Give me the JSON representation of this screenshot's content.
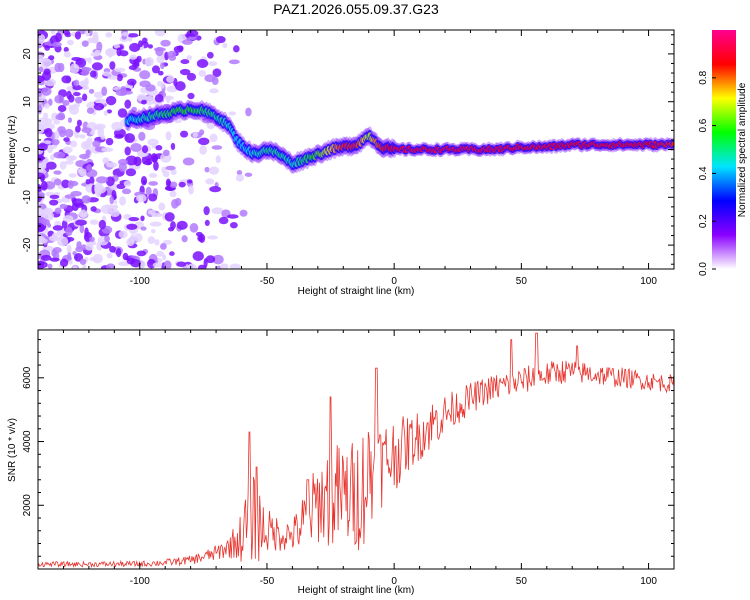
{
  "figure_title": "PAZ1.2026.055.09.37.G23",
  "chart_data": [
    {
      "type": "heatmap",
      "title": "PAZ1.2026.055.09.37.G23",
      "xlabel": "Height of straight line (km)",
      "ylabel": "Frequency (Hz)",
      "xlim": [
        -140,
        110
      ],
      "ylim": [
        -25,
        25
      ],
      "x_ticks": [
        -100,
        -50,
        0,
        50,
        100
      ],
      "y_ticks": [
        -20,
        -10,
        0,
        10,
        20
      ],
      "colorbar": {
        "label": "Normalized spectral amplitude",
        "range": [
          0,
          1
        ],
        "ticks": [
          "0.0",
          "0.2",
          "0.4",
          "0.6",
          "0.8"
        ],
        "colors": [
          "#ffffff",
          "#8a00ff",
          "#0000ff",
          "#00e5ff",
          "#00ff00",
          "#ffff00",
          "#ff0000",
          "#ff0090"
        ]
      },
      "ridge": {
        "x": [
          -105,
          -95,
          -90,
          -85,
          -80,
          -75,
          -70,
          -65,
          -62,
          -58,
          -55,
          -50,
          -45,
          -40,
          -35,
          -30,
          -25,
          -20,
          -15,
          -12,
          -10,
          -8,
          -5,
          0,
          5,
          10,
          20,
          30,
          40,
          50,
          60,
          70,
          80,
          90,
          100,
          110
        ],
        "freq": [
          6,
          7,
          7.5,
          8,
          8.5,
          8,
          7,
          5,
          2,
          0,
          -1,
          0,
          -1,
          -3,
          -2,
          -1,
          0,
          0.5,
          1,
          2,
          3,
          2,
          0.5,
          0,
          0,
          0,
          0,
          0,
          0,
          0.5,
          0.5,
          1,
          1,
          1,
          1,
          1
        ],
        "amplitude": [
          0.3,
          0.4,
          0.45,
          0.5,
          0.5,
          0.45,
          0.4,
          0.35,
          0.3,
          0.3,
          0.35,
          0.4,
          0.4,
          0.35,
          0.45,
          0.55,
          0.7,
          0.85,
          0.85,
          0.7,
          0.6,
          0.75,
          0.85,
          0.9,
          0.92,
          0.92,
          0.93,
          0.93,
          0.92,
          0.9,
          0.9,
          0.88,
          0.9,
          0.9,
          0.88,
          0.85
        ]
      }
    },
    {
      "type": "line",
      "xlabel": "Height of straight line (km)",
      "ylabel": "SNR (10 * v/v)",
      "xlim": [
        -140,
        110
      ],
      "ylim": [
        0,
        7500
      ],
      "x_ticks": [
        -100,
        -50,
        0,
        50,
        100
      ],
      "y_ticks": [
        2000,
        4000,
        6000
      ],
      "series": [
        {
          "name": "SNR",
          "color": "#e8332d",
          "x": [
            -140,
            -120,
            -100,
            -90,
            -80,
            -75,
            -70,
            -65,
            -60,
            -57,
            -55,
            -52,
            -50,
            -45,
            -40,
            -35,
            -30,
            -25,
            -20,
            -15,
            -10,
            -5,
            0,
            5,
            10,
            15,
            20,
            25,
            30,
            35,
            40,
            45,
            50,
            55,
            60,
            65,
            70,
            75,
            80,
            85,
            90,
            95,
            100,
            105,
            110
          ],
          "envelope": [
            150,
            150,
            160,
            200,
            280,
            380,
            500,
            700,
            1000,
            1500,
            1600,
            1300,
            1200,
            1100,
            1050,
            1500,
            2100,
            2300,
            2300,
            2300,
            2900,
            3300,
            3600,
            3900,
            4200,
            4550,
            4850,
            5100,
            5350,
            5550,
            5700,
            5800,
            5900,
            6000,
            6100,
            6200,
            6200,
            6150,
            6100,
            6050,
            6000,
            5950,
            5900,
            5850,
            5800
          ],
          "noise": [
            80,
            80,
            90,
            110,
            140,
            180,
            250,
            350,
            800,
            1500,
            1400,
            1100,
            700,
            550,
            500,
            1000,
            1300,
            1700,
            1700,
            1800,
            2100,
            1400,
            1200,
            900,
            800,
            800,
            650,
            550,
            500,
            450,
            450,
            450,
            450,
            420,
            400,
            400,
            380,
            360,
            350,
            340,
            320,
            310,
            300,
            290,
            280
          ],
          "spikes": [
            {
              "x": -57,
              "y": 4300
            },
            {
              "x": -54,
              "y": 3200
            },
            {
              "x": -34,
              "y": 2800
            },
            {
              "x": -25,
              "y": 5400
            },
            {
              "x": -7,
              "y": 6300
            },
            {
              "x": 56,
              "y": 7400
            },
            {
              "x": 46,
              "y": 7200
            },
            {
              "x": 72,
              "y": 7000
            }
          ]
        }
      ]
    }
  ]
}
